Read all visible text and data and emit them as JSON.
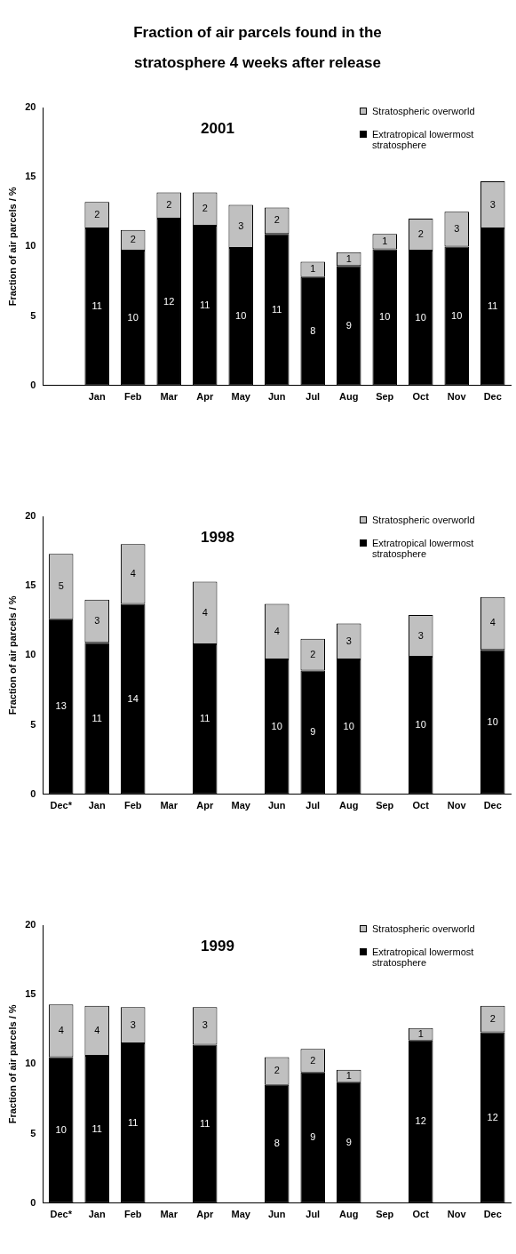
{
  "chart_data": [
    {
      "type": "bar",
      "title": "Fraction of air parcels found in the stratosphere 4 weeks after release",
      "subtitle": "2001",
      "ylabel": "Fraction of air parcels / %",
      "stacked": true,
      "legend": "top right",
      "grid": false,
      "ylim": [
        0,
        20
      ],
      "yticks": [
        0,
        5,
        10,
        15,
        20
      ],
      "categories": [
        null,
        "Jan",
        "Feb",
        "Mar",
        "Apr",
        "May",
        "Jun",
        "Jul",
        "Aug",
        "Sep",
        "Oct",
        "Nov",
        "Dec"
      ],
      "series": [
        {
          "name": "Extratropical lowermost stratosphere",
          "color": "#000000",
          "values": [
            null,
            11.3,
            9.7,
            12.0,
            11.5,
            9.9,
            10.9,
            7.8,
            8.6,
            9.8,
            9.7,
            10.0,
            11.3
          ],
          "value_labels": [
            null,
            "11",
            "10",
            "12",
            "11",
            "10",
            "11",
            "8",
            "9",
            "10",
            "10",
            "10",
            "11"
          ]
        },
        {
          "name": "Stratospheric overworld",
          "color": "#c0c0c0",
          "values": [
            null,
            1.9,
            1.5,
            1.9,
            2.4,
            3.1,
            1.9,
            1.1,
            1.0,
            1.1,
            2.3,
            2.5,
            3.4
          ],
          "value_labels": [
            null,
            "2",
            "2",
            "2",
            "2",
            "3",
            "2",
            "1",
            "1",
            "1",
            "2",
            "3",
            "3"
          ]
        }
      ]
    },
    {
      "type": "bar",
      "title": "1998",
      "ylabel": "Fraction of air parcels / %",
      "stacked": true,
      "legend": "top right",
      "grid": false,
      "ylim": [
        0,
        20
      ],
      "yticks": [
        0,
        5,
        10,
        15,
        20
      ],
      "categories": [
        "Dec*",
        "Jan",
        "Feb",
        "Mar",
        "Apr",
        "May",
        "Jun",
        "Jul",
        "Aug",
        "Sep",
        "Oct",
        "Nov",
        "Dec"
      ],
      "series": [
        {
          "name": "Extratropical lowermost stratosphere",
          "color": "#000000",
          "values": [
            12.6,
            10.9,
            13.7,
            null,
            10.8,
            null,
            9.7,
            8.9,
            9.7,
            null,
            9.9,
            null,
            10.4
          ],
          "value_labels": [
            "13",
            "11",
            "14",
            null,
            "11",
            null,
            "10",
            "9",
            "10",
            null,
            "10",
            null,
            "10"
          ]
        },
        {
          "name": "Stratospheric overworld",
          "color": "#c0c0c0",
          "values": [
            4.7,
            3.1,
            4.3,
            null,
            4.5,
            null,
            4.0,
            2.3,
            2.6,
            null,
            3.0,
            null,
            3.8
          ],
          "value_labels": [
            "5",
            "3",
            "4",
            null,
            "4",
            null,
            "4",
            "2",
            "3",
            null,
            "3",
            null,
            "4"
          ]
        }
      ]
    },
    {
      "type": "bar",
      "title": "1999",
      "ylabel": "Fraction of air parcels / %",
      "stacked": true,
      "legend": "top right",
      "grid": false,
      "ylim": [
        0,
        20
      ],
      "yticks": [
        0,
        5,
        10,
        15,
        20
      ],
      "categories": [
        "Dec*",
        "Jan",
        "Feb",
        "Mar",
        "Apr",
        "May",
        "Jun",
        "Jul",
        "Aug",
        "Sep",
        "Oct",
        "Nov",
        "Dec"
      ],
      "series": [
        {
          "name": "Extratropical lowermost stratosphere",
          "color": "#000000",
          "values": [
            10.5,
            10.6,
            11.5,
            null,
            11.4,
            null,
            8.5,
            9.4,
            8.7,
            null,
            11.7,
            null,
            12.3
          ],
          "value_labels": [
            "10",
            "11",
            "11",
            null,
            "11",
            null,
            "8",
            "9",
            "9",
            null,
            "12",
            null,
            "12"
          ]
        },
        {
          "name": "Stratospheric overworld",
          "color": "#c0c0c0",
          "values": [
            3.8,
            3.6,
            2.6,
            null,
            2.7,
            null,
            2.0,
            1.7,
            0.9,
            null,
            0.9,
            null,
            1.9
          ],
          "value_labels": [
            "4",
            "4",
            "3",
            null,
            "3",
            null,
            "2",
            "2",
            "1",
            null,
            "1",
            null,
            "2"
          ]
        }
      ]
    }
  ]
}
